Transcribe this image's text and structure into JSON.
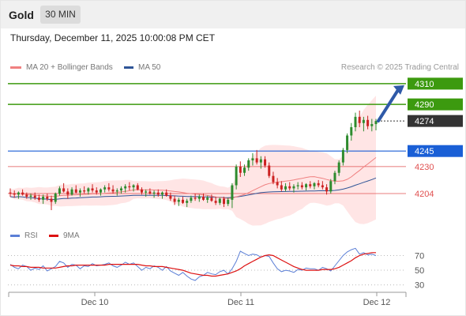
{
  "header": {
    "instrument": "Gold",
    "timeframe": "30 MIN",
    "datetime": "Thursday, December 11, 2025 10:00:08 PM CET"
  },
  "legend": {
    "ma20_label": "MA 20 + Bollinger Bands",
    "ma50_label": "MA 50",
    "credit": "Research © 2025 Trading Central",
    "ma20_color": "#f08080",
    "ma50_color": "#2f5597"
  },
  "rsi_legend": {
    "rsi_label": "RSI",
    "ma_label": "9MA",
    "rsi_color": "#5b7fd6",
    "ma_color": "#dd1111"
  },
  "colors": {
    "bull": "#2e8b2e",
    "bear": "#cc2222",
    "resistance": "#3c9a0f",
    "pivot": "#1a5fd6",
    "support": "#e05050",
    "last": "#333333",
    "bands_fill": "#ffdcdc"
  },
  "chart_data": [
    {
      "type": "candlestick",
      "x_ticks": [
        "Dec 10",
        "Dec 11",
        "Dec 12"
      ],
      "ylim": [
        4188,
        4316
      ],
      "levels": [
        {
          "label": "4310",
          "value": 4310,
          "kind": "resistance"
        },
        {
          "label": "4290",
          "value": 4290,
          "kind": "resistance"
        },
        {
          "label": "4274",
          "value": 4274,
          "kind": "last"
        },
        {
          "label": "4245",
          "value": 4245,
          "kind": "pivot"
        },
        {
          "label": "4230",
          "value": 4230,
          "kind": "support"
        },
        {
          "label": "4204",
          "value": 4204,
          "kind": "support"
        }
      ],
      "candles": [
        [
          4205,
          4209,
          4201,
          4204
        ],
        [
          4204,
          4207,
          4200,
          4203
        ],
        [
          4203,
          4206,
          4199,
          4205
        ],
        [
          4205,
          4208,
          4202,
          4203
        ],
        [
          4203,
          4205,
          4199,
          4201
        ],
        [
          4201,
          4204,
          4198,
          4202
        ],
        [
          4202,
          4205,
          4198,
          4200
        ],
        [
          4200,
          4203,
          4196,
          4198
        ],
        [
          4198,
          4203,
          4194,
          4201
        ],
        [
          4201,
          4204,
          4197,
          4199
        ],
        [
          4199,
          4202,
          4188,
          4196
        ],
        [
          4196,
          4205,
          4194,
          4204
        ],
        [
          4204,
          4211,
          4202,
          4209
        ],
        [
          4209,
          4214,
          4205,
          4206
        ],
        [
          4206,
          4209,
          4199,
          4203
        ],
        [
          4203,
          4210,
          4202,
          4208
        ],
        [
          4208,
          4212,
          4204,
          4205
        ],
        [
          4205,
          4209,
          4201,
          4207
        ],
        [
          4207,
          4211,
          4204,
          4206
        ],
        [
          4206,
          4210,
          4203,
          4209
        ],
        [
          4209,
          4213,
          4205,
          4207
        ],
        [
          4207,
          4210,
          4203,
          4205
        ],
        [
          4205,
          4209,
          4202,
          4208
        ],
        [
          4208,
          4212,
          4205,
          4210
        ],
        [
          4210,
          4214,
          4206,
          4208
        ],
        [
          4208,
          4212,
          4204,
          4206
        ],
        [
          4206,
          4209,
          4202,
          4207
        ],
        [
          4207,
          4211,
          4204,
          4209
        ],
        [
          4209,
          4213,
          4205,
          4211
        ],
        [
          4211,
          4215,
          4207,
          4210
        ],
        [
          4210,
          4213,
          4206,
          4212
        ],
        [
          4212,
          4214,
          4207,
          4208
        ],
        [
          4208,
          4210,
          4203,
          4205
        ],
        [
          4205,
          4208,
          4201,
          4206
        ],
        [
          4206,
          4209,
          4203,
          4204
        ],
        [
          4204,
          4207,
          4200,
          4205
        ],
        [
          4205,
          4208,
          4201,
          4203
        ],
        [
          4203,
          4206,
          4199,
          4205
        ],
        [
          4205,
          4208,
          4201,
          4202
        ],
        [
          4202,
          4205,
          4197,
          4199
        ],
        [
          4199,
          4202,
          4193,
          4196
        ],
        [
          4196,
          4200,
          4192,
          4198
        ],
        [
          4198,
          4201,
          4194,
          4195
        ],
        [
          4195,
          4199,
          4191,
          4197
        ],
        [
          4197,
          4202,
          4195,
          4200
        ],
        [
          4200,
          4204,
          4197,
          4199
        ],
        [
          4199,
          4203,
          4196,
          4201
        ],
        [
          4201,
          4204,
          4197,
          4198
        ],
        [
          4198,
          4202,
          4195,
          4200
        ],
        [
          4200,
          4203,
          4196,
          4197
        ],
        [
          4197,
          4201,
          4193,
          4195
        ],
        [
          4195,
          4200,
          4193,
          4199
        ],
        [
          4199,
          4201,
          4191,
          4194
        ],
        [
          4194,
          4200,
          4192,
          4198
        ],
        [
          4198,
          4214,
          4190,
          4212
        ],
        [
          4212,
          4232,
          4208,
          4230
        ],
        [
          4230,
          4235,
          4220,
          4224
        ],
        [
          4224,
          4232,
          4221,
          4229
        ],
        [
          4229,
          4238,
          4226,
          4236
        ],
        [
          4236,
          4243,
          4231,
          4238
        ],
        [
          4238,
          4246,
          4232,
          4234
        ],
        [
          4234,
          4240,
          4228,
          4237
        ],
        [
          4237,
          4240,
          4229,
          4231
        ],
        [
          4231,
          4234,
          4219,
          4221
        ],
        [
          4221,
          4225,
          4213,
          4215
        ],
        [
          4215,
          4219,
          4209,
          4212
        ],
        [
          4212,
          4216,
          4206,
          4208
        ],
        [
          4208,
          4214,
          4206,
          4211
        ],
        [
          4211,
          4215,
          4207,
          4209
        ],
        [
          4209,
          4213,
          4205,
          4211
        ],
        [
          4211,
          4215,
          4208,
          4212
        ],
        [
          4212,
          4215,
          4208,
          4210
        ],
        [
          4210,
          4214,
          4207,
          4213
        ],
        [
          4213,
          4216,
          4209,
          4211
        ],
        [
          4211,
          4215,
          4208,
          4214
        ],
        [
          4214,
          4217,
          4210,
          4212
        ],
        [
          4212,
          4216,
          4208,
          4210
        ],
        [
          4210,
          4213,
          4203,
          4206
        ],
        [
          4206,
          4218,
          4204,
          4216
        ],
        [
          4216,
          4226,
          4213,
          4224
        ],
        [
          4224,
          4236,
          4221,
          4234
        ],
        [
          4234,
          4248,
          4231,
          4246
        ],
        [
          4246,
          4262,
          4243,
          4260
        ],
        [
          4260,
          4272,
          4255,
          4268
        ],
        [
          4268,
          4282,
          4264,
          4278
        ],
        [
          4278,
          4284,
          4268,
          4272
        ],
        [
          4272,
          4278,
          4264,
          4275
        ],
        [
          4275,
          4279,
          4266,
          4269
        ],
        [
          4269,
          4276,
          4264,
          4271
        ],
        [
          4271,
          4276,
          4265,
          4274
        ]
      ],
      "projection": [
        4274,
        4310
      ]
    },
    {
      "type": "line",
      "name": "RSI",
      "ylim": [
        22,
        90
      ],
      "y_ticks": [
        70,
        50,
        30
      ],
      "rsi": [
        58,
        54,
        52,
        57,
        55,
        50,
        53,
        51,
        56,
        49,
        52,
        55,
        62,
        60,
        54,
        58,
        57,
        52,
        56,
        55,
        59,
        56,
        57,
        58,
        60,
        56,
        54,
        57,
        61,
        58,
        60,
        55,
        50,
        54,
        52,
        56,
        54,
        50,
        55,
        49,
        46,
        43,
        47,
        42,
        38,
        36,
        41,
        43,
        47,
        45,
        44,
        48,
        50,
        45,
        52,
        62,
        76,
        73,
        70,
        72,
        71,
        68,
        70,
        69,
        60,
        52,
        48,
        50,
        49,
        47,
        51,
        50,
        53,
        52,
        52,
        50,
        54,
        52,
        49,
        56,
        63,
        70,
        75,
        78,
        80,
        72,
        74,
        71,
        72,
        70
      ],
      "rsi_ma": [
        57,
        56,
        56,
        55,
        55,
        54,
        54,
        54,
        53,
        53,
        53,
        53,
        54,
        55,
        56,
        56,
        57,
        57,
        57,
        57,
        57,
        57,
        57,
        57,
        58,
        58,
        58,
        58,
        58,
        58,
        58,
        58,
        57,
        56,
        56,
        55,
        55,
        55,
        54,
        53,
        52,
        51,
        50,
        48,
        46,
        45,
        44,
        43,
        43,
        42,
        42,
        43,
        44,
        45,
        47,
        49,
        52,
        56,
        59,
        62,
        65,
        68,
        70,
        71,
        70,
        67,
        64,
        61,
        58,
        55,
        53,
        51,
        50,
        50,
        50,
        50,
        51,
        51,
        51,
        52,
        54,
        57,
        60,
        63,
        67,
        70,
        72,
        73,
        74,
        74
      ]
    }
  ]
}
